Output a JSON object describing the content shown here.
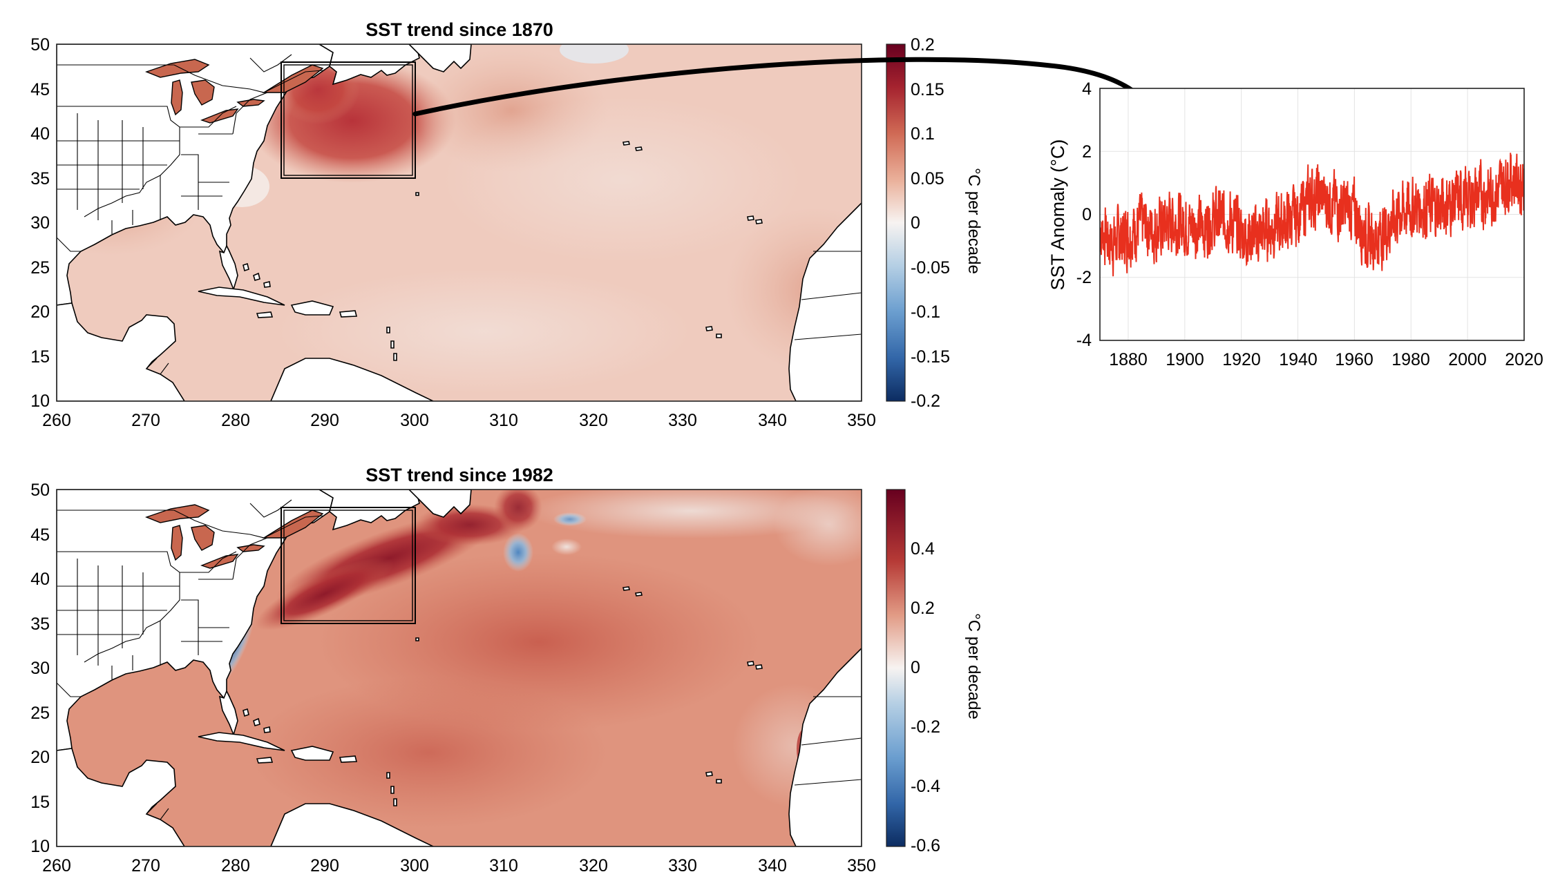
{
  "colors": {
    "warm": "#a5232f",
    "cool": "#2f6bb0",
    "neutral": "#f6eeea",
    "series": "#e8301e"
  },
  "chart_data": [
    {
      "type": "heatmap",
      "title": "SST trend since 1870",
      "x_ticks": [
        "260",
        "270",
        "280",
        "290",
        "300",
        "310",
        "320",
        "330",
        "340",
        "350"
      ],
      "y_ticks": [
        "10",
        "15",
        "20",
        "25",
        "30",
        "35",
        "40",
        "45",
        "50"
      ],
      "xlim": [
        260,
        350
      ],
      "ylim": [
        10,
        50
      ],
      "grid": false,
      "box": {
        "lon": [
          285,
          300
        ],
        "lat": [
          35,
          48
        ]
      },
      "colorbar": {
        "label": "°C per decade",
        "range": [
          -0.2,
          0.2
        ],
        "ticks": [
          "0.2",
          "0.15",
          "0.1",
          "0.05",
          "0",
          "-0.05",
          "-0.1",
          "-0.15",
          "-0.2"
        ]
      },
      "field_summary": {
        "open_ocean_typical": 0.05,
        "gulf_of_maine_box_max": 0.16,
        "southeast_coast_min": -0.01
      }
    },
    {
      "type": "heatmap",
      "title": "SST trend since 1982",
      "x_ticks": [
        "260",
        "270",
        "280",
        "290",
        "300",
        "310",
        "320",
        "330",
        "340",
        "350"
      ],
      "y_ticks": [
        "10",
        "15",
        "20",
        "25",
        "30",
        "35",
        "40",
        "45",
        "50"
      ],
      "xlim": [
        260,
        350
      ],
      "ylim": [
        10,
        50
      ],
      "grid": false,
      "box": {
        "lon": [
          285,
          300
        ],
        "lat": [
          35,
          48
        ]
      },
      "colorbar": {
        "label": "°C per decade",
        "range": [
          -0.6,
          0.6
        ],
        "ticks": [
          "0.4",
          "0.2",
          "0",
          "-0.2",
          "-0.4",
          "-0.6"
        ]
      },
      "field_summary": {
        "open_ocean_typical": 0.2,
        "gulf_stream_max": 0.55,
        "cold_patch_min": -0.35
      }
    },
    {
      "type": "line",
      "title": "",
      "xlabel": "",
      "ylabel": "SST Anomaly (°C)",
      "x_ticks": [
        "1880",
        "1900",
        "1920",
        "1940",
        "1960",
        "1980",
        "2000",
        "2020"
      ],
      "y_ticks": [
        "4",
        "2",
        "0",
        "-2",
        "-4"
      ],
      "xlim": [
        1870,
        2020
      ],
      "ylim": [
        -4,
        4
      ],
      "grid": true,
      "series": [
        {
          "x": [
            1870,
            1875,
            1880,
            1885,
            1890,
            1895,
            1900,
            1905,
            1910,
            1915,
            1920,
            1925,
            1930,
            1935,
            1940,
            1945,
            1950,
            1955,
            1960,
            1965,
            1970,
            1975,
            1980,
            1985,
            1990,
            1995,
            2000,
            2005,
            2010,
            2015,
            2020
          ],
          "y": [
            -0.5,
            -0.9,
            -0.6,
            -0.3,
            -0.5,
            -0.2,
            -0.3,
            -0.4,
            -0.2,
            -0.1,
            -0.6,
            -0.7,
            -0.4,
            -0.3,
            0.0,
            0.6,
            0.5,
            0.2,
            0.1,
            -0.8,
            -0.6,
            0.0,
            0.2,
            0.3,
            0.2,
            0.4,
            0.5,
            0.6,
            0.7,
            1.2,
            1.0
          ]
        }
      ]
    }
  ]
}
